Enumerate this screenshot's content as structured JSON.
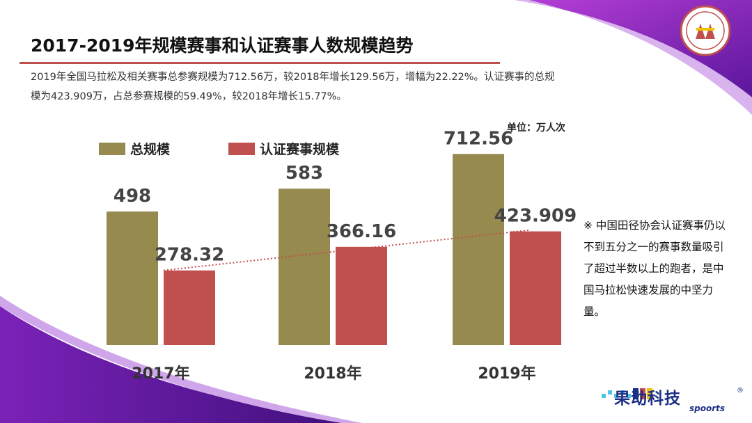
{
  "slide": {
    "title": "2017-2019年规模赛事和认证赛事人数规模趋势",
    "summary": "2019年全国马拉松及相关赛事总参赛规模为712.56万，较2018年增长129.56万，增幅为22.22%。认证赛事的总规模为423.909万，占总参赛规模的59.49%，较2018年增长15.77%。",
    "unit": "单位：万人次",
    "note": "※ 中国田径协会认证赛事仍以不到五分之一的赛事数量吸引了超过半数以上的跑者，是中国马拉松快速发展的中坚力量。",
    "brand": "果动科技",
    "brand_sub": "spoorts",
    "brand_reg": "®"
  },
  "colors": {
    "total": "#968a4e",
    "certified": "#c0504d",
    "trend": "#c0504d",
    "accent_purple": "#6a1fa8"
  },
  "chart_data": {
    "type": "bar",
    "categories": [
      "2017年",
      "2018年",
      "2019年"
    ],
    "series": [
      {
        "name": "总规模",
        "values": [
          498,
          583,
          712.56
        ],
        "labels": [
          "498",
          "583",
          "712.56"
        ]
      },
      {
        "name": "认证赛事规模",
        "values": [
          278.32,
          366.16,
          423.909
        ],
        "labels": [
          "278.32",
          "366.16",
          "423.909"
        ]
      }
    ],
    "trendline": {
      "series": "认证赛事规模",
      "style": "dotted"
    },
    "ylim": [
      0,
      900
    ],
    "unit": "单位：万人次",
    "legend": "top-left"
  }
}
